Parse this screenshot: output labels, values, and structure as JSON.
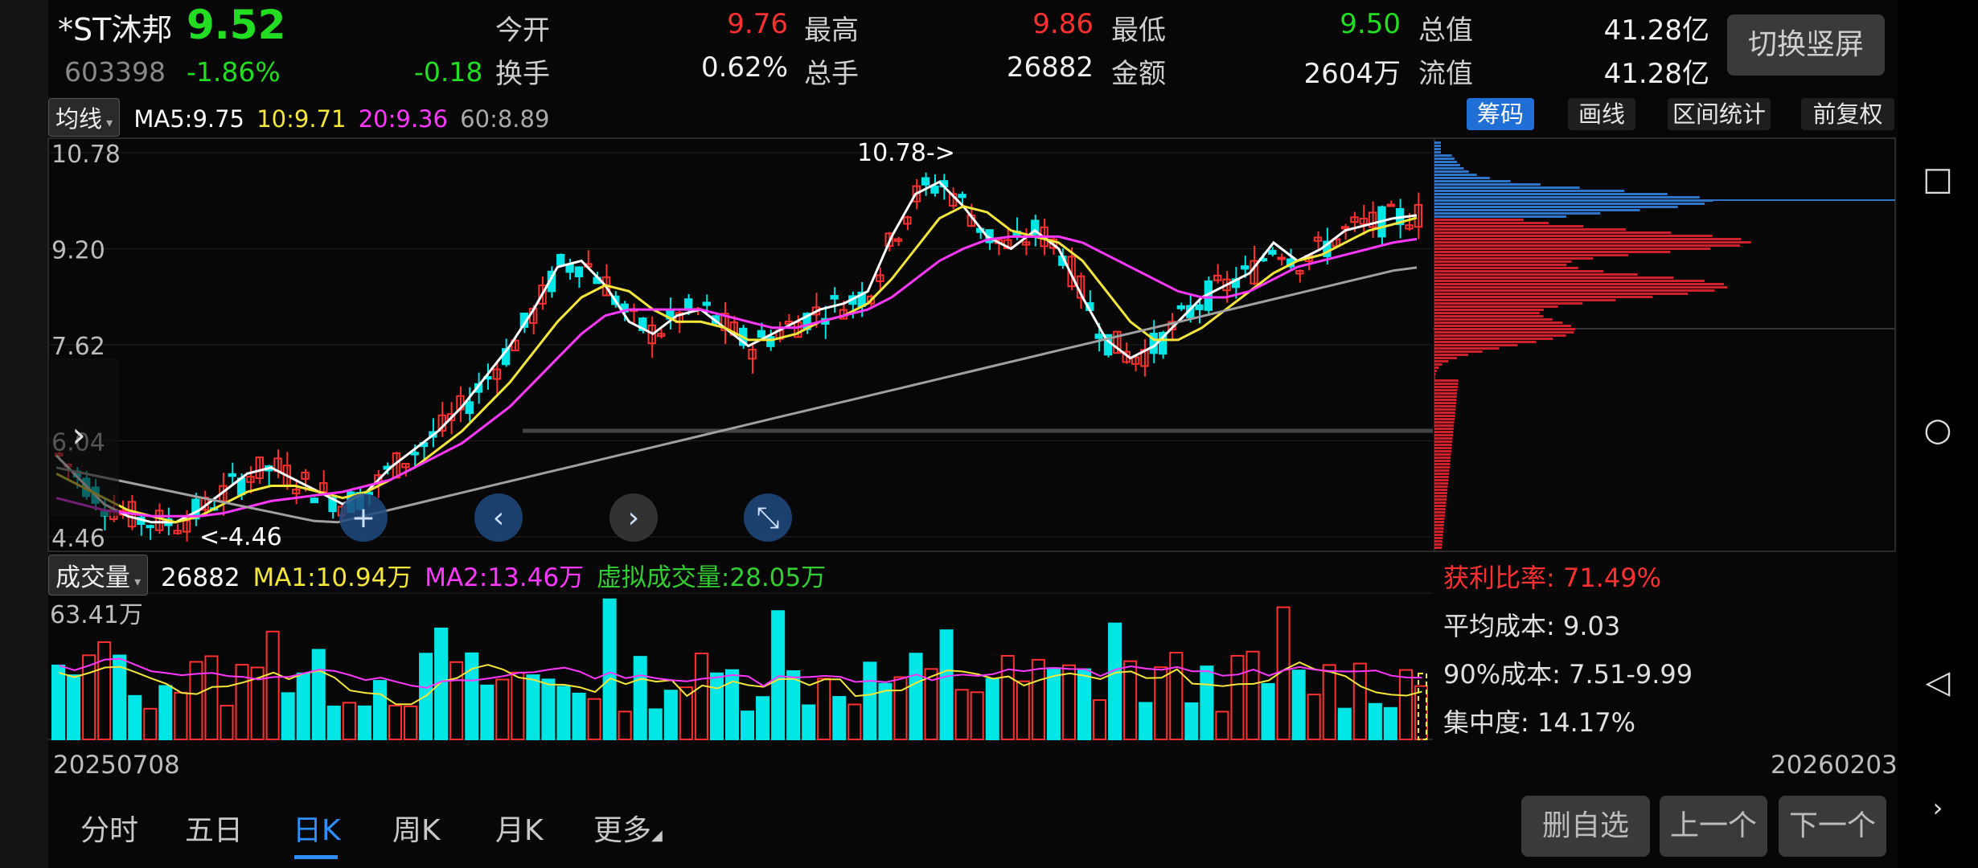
{
  "header": {
    "name": "*ST沐邦",
    "price": "9.52",
    "code": "603398",
    "change_pct": "-1.86%",
    "change": "-0.18",
    "switch_label": "切换竖屏"
  },
  "quotes": [
    {
      "label": "今开",
      "value": "9.76",
      "color": "red"
    },
    {
      "label": "最高",
      "value": "9.86",
      "color": "red"
    },
    {
      "label": "最低",
      "value": "9.50",
      "color": "green"
    },
    {
      "label": "总值",
      "value": "41.28亿",
      "color": "white"
    },
    {
      "label": "换手",
      "value": "0.62%",
      "color": "white"
    },
    {
      "label": "总手",
      "value": "26882",
      "color": "white"
    },
    {
      "label": "金额",
      "value": "2604万",
      "color": "white"
    },
    {
      "label": "流值",
      "value": "41.28亿",
      "color": "white"
    }
  ],
  "ma_bar": {
    "selector": "均线",
    "ma5": "MA5:9.75",
    "ma10": "10:9.71",
    "ma20": "20:9.36",
    "ma60": "60:8.89"
  },
  "chips": {
    "chouma": "筹码",
    "huaxian": "画线",
    "qujian": "区间统计",
    "qianfuquan": "前复权"
  },
  "vol_bar": {
    "selector": "成交量",
    "vol": "26882",
    "ma1": "MA1:10.94万",
    "ma2": "MA2:13.46万",
    "virtual": "虚拟成交量:28.05万"
  },
  "stats": {
    "profit": "获利比率: 71.49%",
    "avg_cost": "平均成本: 9.03",
    "cost90": "90%成本:  7.51-9.99",
    "concentration": "集中度: 14.17%"
  },
  "dates": {
    "start": "20250708",
    "end": "20260203"
  },
  "tabs": [
    {
      "label": "分时",
      "active": false
    },
    {
      "label": "五日",
      "active": false
    },
    {
      "label": "日K",
      "active": true
    },
    {
      "label": "周K",
      "active": false
    },
    {
      "label": "月K",
      "active": false
    },
    {
      "label": "更多",
      "active": false
    }
  ],
  "buttons": {
    "delete": "删自选",
    "prev": "上一个",
    "next": "下一个"
  },
  "colors": {
    "up": "#ff3030",
    "down": "#00e5e5",
    "ma5": "#ffffff",
    "ma10": "#f5e63c",
    "ma20": "#ff38ff",
    "ma60": "#a0a0a0",
    "accent": "#1f6fd6"
  },
  "chart_data": [
    {
      "type": "candlestick",
      "title": "",
      "y_ticks": [
        "10.78",
        "9.20",
        "7.62",
        "6.04",
        "4.46"
      ],
      "ylim": [
        4.46,
        10.78
      ],
      "annotations": [
        "10.78->",
        "<-4.46"
      ],
      "series": [
        {
          "name": "MA5",
          "values": [
            5.8,
            5.4,
            5.0,
            4.8,
            4.7,
            4.7,
            4.9,
            5.2,
            5.5,
            5.6,
            5.4,
            5.2,
            5.0,
            5.2,
            5.6,
            5.9,
            6.2,
            6.6,
            7.1,
            7.6,
            8.2,
            8.9,
            9.0,
            8.6,
            8.0,
            7.8,
            8.1,
            8.2,
            7.9,
            7.6,
            7.8,
            8.0,
            8.2,
            8.3,
            8.5,
            9.4,
            10.1,
            10.3,
            9.9,
            9.4,
            9.2,
            9.5,
            9.2,
            8.4,
            7.7,
            7.4,
            7.6,
            8.0,
            8.4,
            8.6,
            8.8,
            9.3,
            9.0,
            9.2,
            9.5,
            9.6,
            9.7,
            9.75
          ]
        },
        {
          "name": "MA10",
          "values": [
            5.5,
            5.3,
            5.1,
            4.9,
            4.8,
            4.7,
            4.8,
            5.0,
            5.2,
            5.3,
            5.3,
            5.2,
            5.1,
            5.2,
            5.4,
            5.6,
            5.9,
            6.2,
            6.6,
            7.0,
            7.5,
            8.0,
            8.4,
            8.6,
            8.5,
            8.2,
            8.0,
            8.0,
            7.9,
            7.7,
            7.7,
            7.8,
            8.0,
            8.1,
            8.3,
            8.7,
            9.2,
            9.7,
            9.9,
            9.8,
            9.5,
            9.4,
            9.3,
            9.0,
            8.5,
            8.0,
            7.7,
            7.7,
            7.9,
            8.2,
            8.5,
            8.8,
            9.0,
            9.1,
            9.3,
            9.5,
            9.6,
            9.71
          ]
        },
        {
          "name": "MA20",
          "values": [
            5.1,
            5.0,
            4.9,
            4.85,
            4.8,
            4.8,
            4.8,
            4.85,
            4.95,
            5.05,
            5.1,
            5.15,
            5.2,
            5.3,
            5.4,
            5.6,
            5.8,
            6.0,
            6.3,
            6.6,
            7.0,
            7.4,
            7.8,
            8.1,
            8.2,
            8.2,
            8.2,
            8.2,
            8.1,
            8.0,
            7.9,
            7.9,
            8.0,
            8.1,
            8.2,
            8.4,
            8.7,
            9.0,
            9.2,
            9.35,
            9.4,
            9.4,
            9.4,
            9.3,
            9.1,
            8.9,
            8.7,
            8.5,
            8.4,
            8.4,
            8.5,
            8.7,
            8.9,
            9.0,
            9.1,
            9.2,
            9.3,
            9.36
          ]
        }
      ]
    },
    {
      "type": "bar",
      "title": "",
      "y_ticks": [
        "63.41万"
      ],
      "ylim": [
        0,
        63.41
      ]
    }
  ]
}
